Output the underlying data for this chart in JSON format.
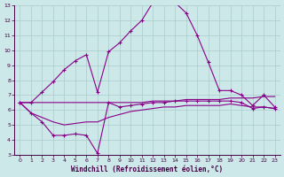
{
  "xlabel": "Windchill (Refroidissement éolien,°C)",
  "background_color": "#cce8e8",
  "grid_color": "#aacccc",
  "line_color": "#880088",
  "xlim": [
    -0.5,
    23.5
  ],
  "ylim": [
    3,
    13
  ],
  "yticks": [
    3,
    4,
    5,
    6,
    7,
    8,
    9,
    10,
    11,
    12,
    13
  ],
  "xticks": [
    0,
    1,
    2,
    3,
    4,
    5,
    6,
    7,
    8,
    9,
    10,
    11,
    12,
    13,
    14,
    15,
    16,
    17,
    18,
    19,
    20,
    21,
    22,
    23
  ],
  "line1_x": [
    0,
    1,
    2,
    3,
    4,
    5,
    6,
    7,
    8,
    9,
    10,
    11,
    12,
    13,
    14,
    15,
    16,
    17,
    18,
    19,
    20,
    21,
    22,
    23
  ],
  "line1_y": [
    6.5,
    6.5,
    7.2,
    7.9,
    8.7,
    9.3,
    9.7,
    7.2,
    9.9,
    10.5,
    11.3,
    12.0,
    13.2,
    13.3,
    13.2,
    12.5,
    11.0,
    9.2,
    7.3,
    7.3,
    7.0,
    6.3,
    7.0,
    6.2
  ],
  "line2_x": [
    0,
    1,
    2,
    3,
    4,
    5,
    6,
    7,
    8,
    9,
    10,
    11,
    12,
    13,
    14,
    15,
    16,
    17,
    18,
    19,
    20,
    21,
    22,
    23
  ],
  "line2_y": [
    6.5,
    5.8,
    5.2,
    4.3,
    4.3,
    4.4,
    4.3,
    3.1,
    6.5,
    6.2,
    6.3,
    6.4,
    6.5,
    6.5,
    6.6,
    6.6,
    6.6,
    6.6,
    6.6,
    6.6,
    6.5,
    6.1,
    6.2,
    6.1
  ],
  "line3_x": [
    0,
    1,
    2,
    3,
    4,
    5,
    6,
    7,
    8,
    9,
    10,
    11,
    12,
    13,
    14,
    15,
    16,
    17,
    18,
    19,
    20,
    21,
    22,
    23
  ],
  "line3_y": [
    6.5,
    5.8,
    5.5,
    5.2,
    5.0,
    5.1,
    5.2,
    5.2,
    5.5,
    5.7,
    5.9,
    6.0,
    6.1,
    6.2,
    6.2,
    6.3,
    6.3,
    6.3,
    6.3,
    6.4,
    6.3,
    6.2,
    6.2,
    6.1
  ],
  "line4_x": [
    0,
    1,
    2,
    3,
    4,
    5,
    6,
    7,
    8,
    9,
    10,
    11,
    12,
    13,
    14,
    15,
    16,
    17,
    18,
    19,
    20,
    21,
    22,
    23
  ],
  "line4_y": [
    6.5,
    6.5,
    6.5,
    6.5,
    6.5,
    6.5,
    6.5,
    6.5,
    6.5,
    6.5,
    6.5,
    6.5,
    6.6,
    6.6,
    6.6,
    6.7,
    6.7,
    6.7,
    6.7,
    6.8,
    6.8,
    6.8,
    6.9,
    6.9
  ]
}
